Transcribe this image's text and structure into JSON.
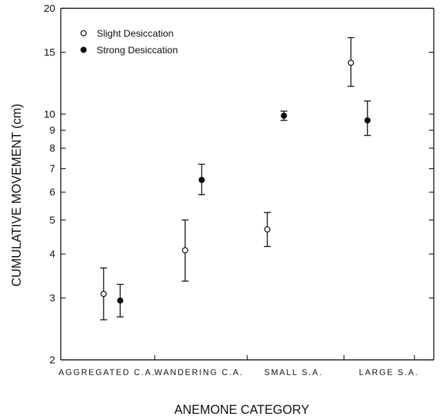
{
  "chart_data": {
    "type": "scatter",
    "title": "",
    "xlabel": "ANEMONE CATEGORY",
    "ylabel": "CUMULATIVE MOVEMENT (cm)",
    "y_scale": "log",
    "ylim": [
      2,
      20
    ],
    "y_ticks": [
      {
        "value": 2,
        "label": "2"
      },
      {
        "value": 3,
        "label": "3"
      },
      {
        "value": 4,
        "label": "4"
      },
      {
        "value": 5,
        "label": "5"
      },
      {
        "value": 6,
        "label": "6"
      },
      {
        "value": 7,
        "label": "7"
      },
      {
        "value": 8,
        "label": "8"
      },
      {
        "value": 9,
        "label": "9"
      },
      {
        "value": 10,
        "label": "10"
      },
      {
        "value": 15,
        "label": "15"
      },
      {
        "value": 20,
        "label": "20"
      }
    ],
    "categories": [
      "AGGREGATED C.A.",
      "WANDERING C.A.",
      "SMALL S.A.",
      "LARGE S.A."
    ],
    "series": [
      {
        "name": "Slight Desiccation",
        "marker": "open-circle",
        "values": [
          3.08,
          4.1,
          4.7,
          14.0
        ],
        "error_low": [
          2.6,
          3.35,
          4.2,
          12.0
        ],
        "error_high": [
          3.65,
          5.0,
          5.25,
          16.5
        ]
      },
      {
        "name": "Strong Desiccation",
        "marker": "filled-circle",
        "values": [
          2.95,
          6.5,
          9.9,
          9.6
        ],
        "error_low": [
          2.65,
          5.9,
          9.6,
          8.7
        ],
        "error_high": [
          3.28,
          7.2,
          10.2,
          10.9
        ]
      }
    ],
    "legend_position": "top-left",
    "grid": false
  }
}
